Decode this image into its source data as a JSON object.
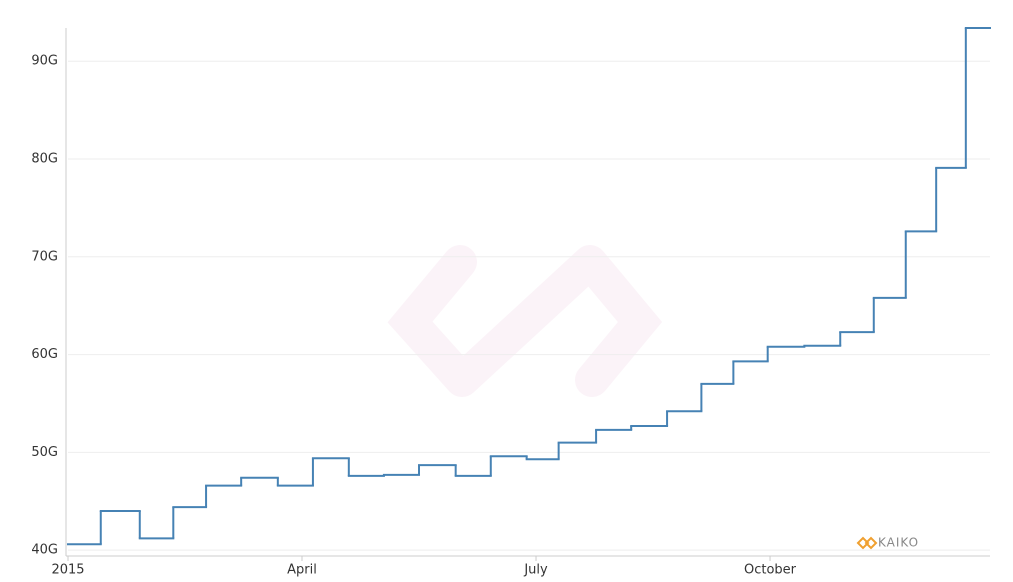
{
  "chart_data": {
    "type": "line",
    "step": true,
    "watermark": "KAIKO",
    "x": [
      0,
      0.42,
      0.92,
      1.35,
      1.77,
      2.22,
      2.69,
      3.14,
      3.6,
      4.05,
      4.5,
      4.97,
      5.42,
      5.88,
      6.29,
      6.77,
      7.22,
      7.68,
      8.12,
      8.53,
      8.97,
      9.44,
      9.9,
      10.33,
      10.74,
      11.13,
      11.51
    ],
    "series": [
      {
        "color": "#4682b4",
        "values": [
          40.6,
          44.0,
          41.2,
          44.4,
          46.6,
          47.4,
          46.6,
          49.4,
          47.6,
          47.7,
          48.7,
          47.6,
          49.6,
          49.3,
          51.0,
          52.3,
          52.7,
          54.2,
          57.0,
          59.3,
          60.8,
          60.9,
          62.3,
          65.8,
          72.6,
          79.1,
          93.4
        ]
      }
    ],
    "xlim": [
      0,
      11.82
    ],
    "xticks": [
      {
        "value": 0,
        "label": "2015"
      },
      {
        "value": 3,
        "label": "April"
      },
      {
        "value": 6,
        "label": "July"
      },
      {
        "value": 9,
        "label": "October"
      }
    ],
    "ylim": [
      39.4,
      93.4
    ],
    "yticks": [
      {
        "value": 40,
        "label": "40G"
      },
      {
        "value": 50,
        "label": "50G"
      },
      {
        "value": 60,
        "label": "60G"
      },
      {
        "value": 70,
        "label": "70G"
      },
      {
        "value": 80,
        "label": "80G"
      },
      {
        "value": 90,
        "label": "90G"
      }
    ],
    "grid": true
  }
}
